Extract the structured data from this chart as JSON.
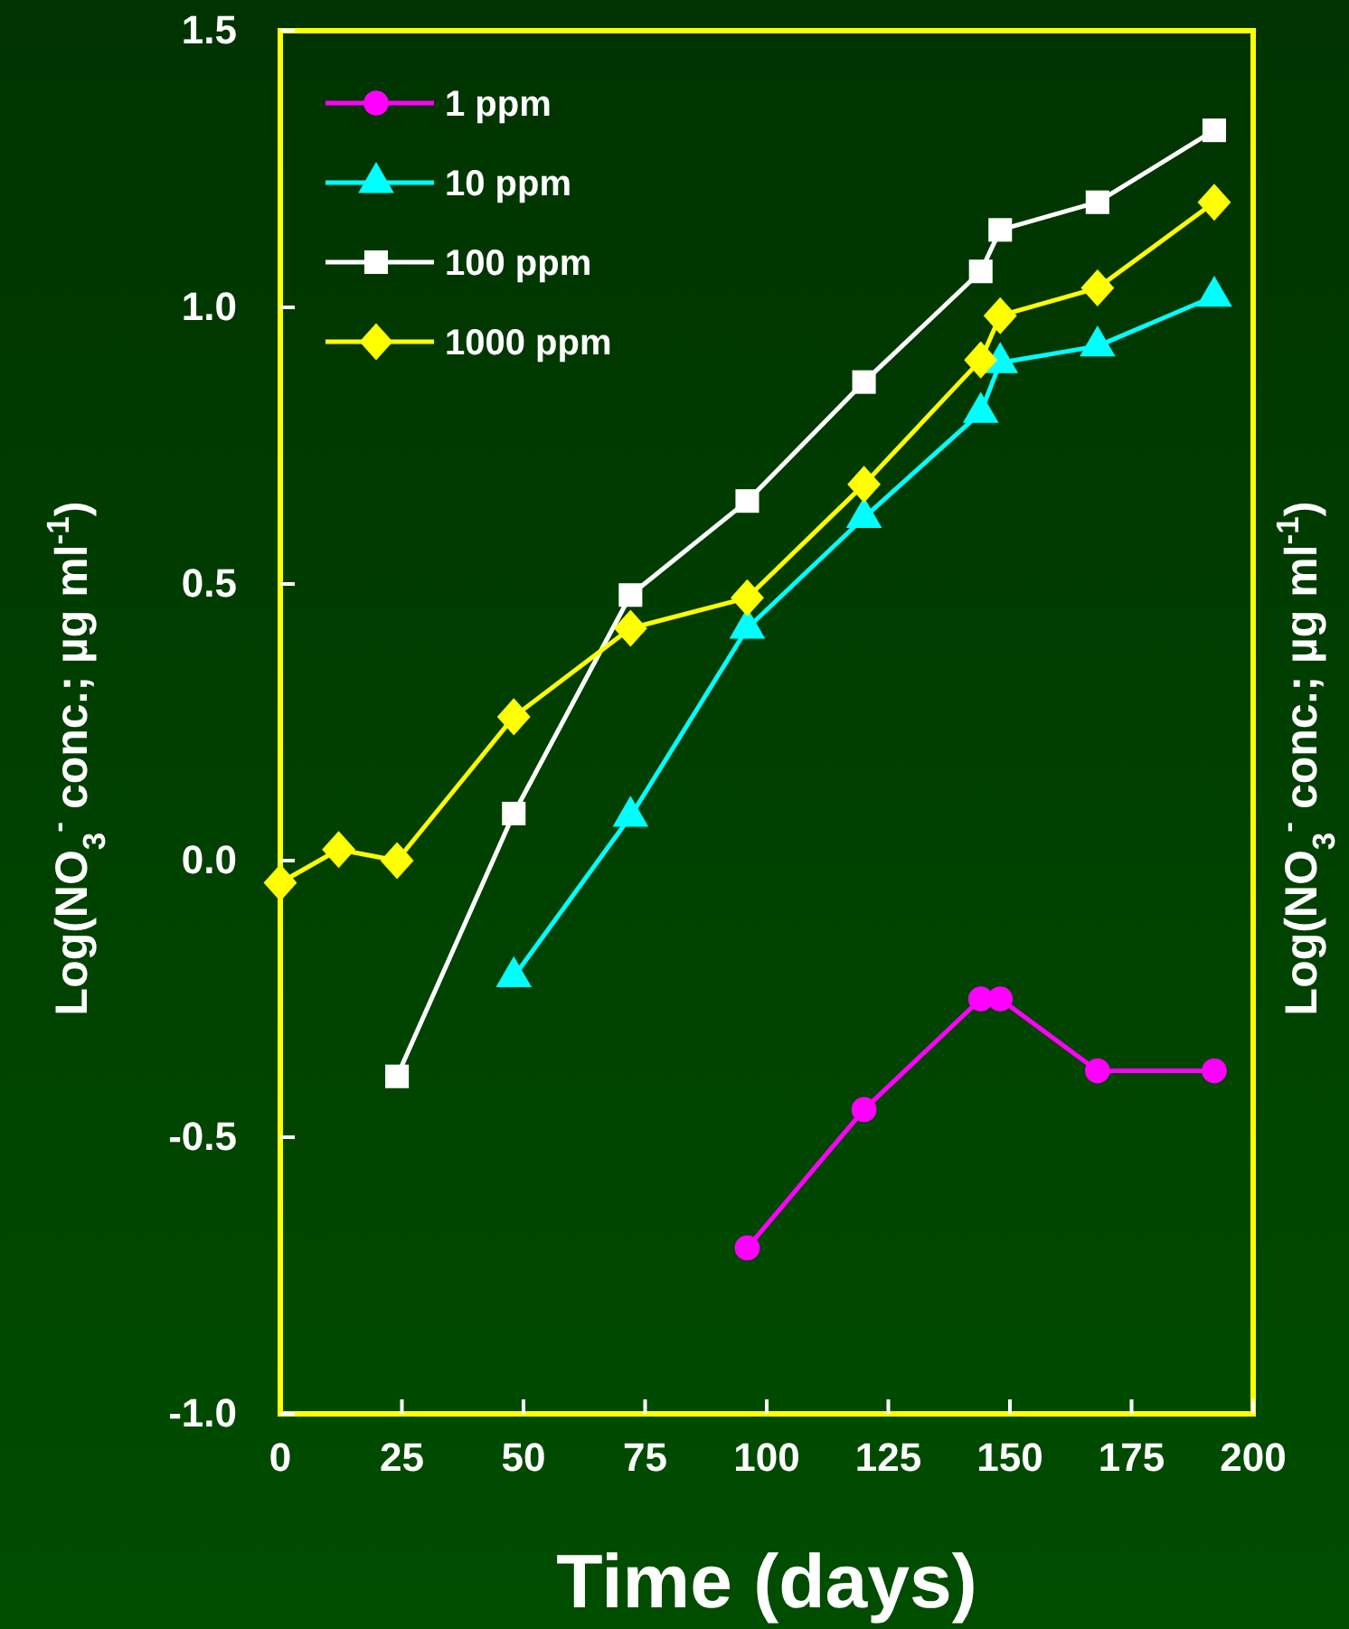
{
  "chart_data": {
    "type": "line",
    "xlabel": "Time (days)",
    "ylabel": "Log(NO$_{3}$$^{-}$ conc.; µg ml$^{-1}$)",
    "y2label": "Log(NO$_{3}$$^{-}$ conc.; µg ml$^{-1}$)",
    "xlim": [
      0,
      200
    ],
    "xticks": [
      0,
      25,
      50,
      75,
      100,
      125,
      150,
      175,
      200
    ],
    "ylim": [
      -1.0,
      1.5
    ],
    "yticks": [
      {
        "value": -1,
        "label": "-1.0"
      },
      -0.5,
      {
        "value": 0,
        "label": "0.0"
      },
      0.5,
      {
        "value": 1,
        "label": "1.0"
      },
      1.5
    ],
    "grid": false,
    "legend": "top left",
    "line_style": "solid",
    "series": [
      {
        "name": "1 ppm",
        "color": "#ff00ff",
        "marker": "circle",
        "x": [
          96,
          120,
          144,
          148,
          168,
          192
        ],
        "values": [
          -0.7,
          -0.45,
          -0.25,
          -0.25,
          -0.38,
          -0.38
        ]
      },
      {
        "name": "10 ppm",
        "color": "#00ffff",
        "marker": "triangle",
        "x": [
          48,
          72,
          96,
          120,
          144,
          148,
          168,
          192
        ],
        "values": [
          -0.21,
          0.08,
          0.42,
          0.62,
          0.81,
          0.9,
          0.93,
          1.02
        ]
      },
      {
        "name": "100 ppm",
        "color": "#ffffff",
        "marker": "square",
        "x": [
          24,
          48,
          72,
          96,
          120,
          144,
          148,
          168,
          192
        ],
        "values": [
          -0.39,
          0.085,
          0.48,
          0.65,
          0.865,
          1.065,
          1.14,
          1.19,
          1.32
        ]
      },
      {
        "name": "1000 ppm",
        "color": "#ffff00",
        "marker": "diamond",
        "x": [
          0,
          12,
          24,
          48,
          72,
          96,
          120,
          144,
          148,
          168,
          192
        ],
        "values": [
          -0.04,
          0.02,
          0.0,
          0.26,
          0.42,
          0.475,
          0.68,
          0.905,
          0.985,
          1.035,
          1.19
        ]
      }
    ]
  }
}
